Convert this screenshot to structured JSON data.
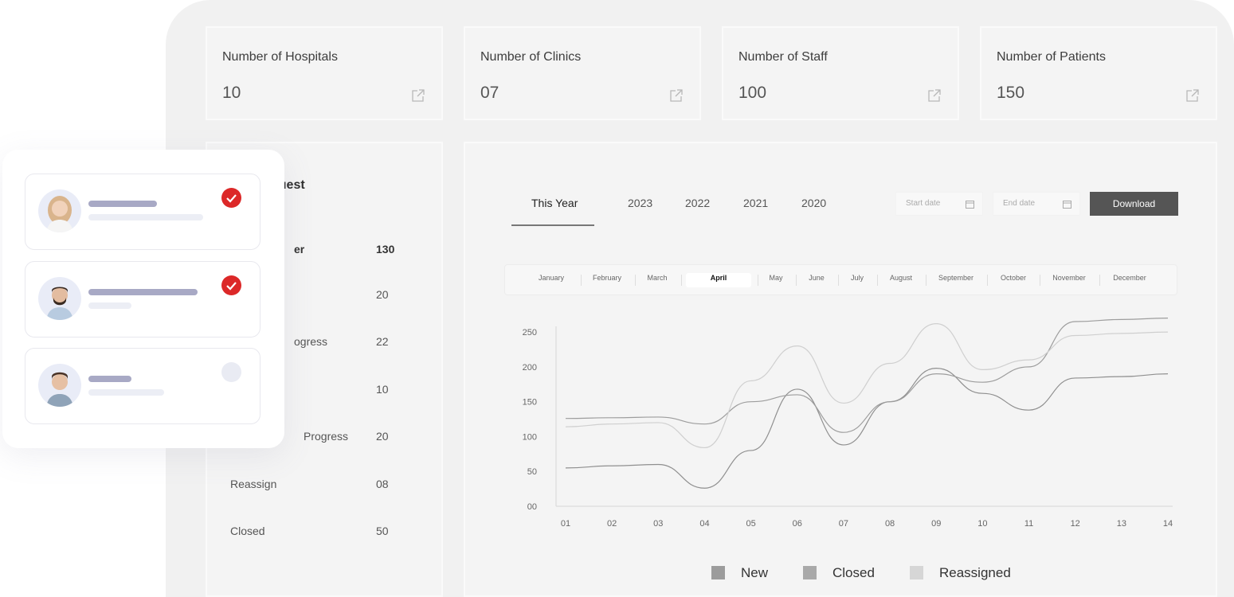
{
  "stats": [
    {
      "title": "Number of Hospitals",
      "value": "10"
    },
    {
      "title": "Number of Clinics",
      "value": "07"
    },
    {
      "title": "Number of Staff",
      "value": "100"
    },
    {
      "title": "Number of Patients",
      "value": "150"
    }
  ],
  "request_panel": {
    "title_partial": "quest",
    "rows": [
      {
        "label": "er",
        "value": "130"
      },
      {
        "label": "",
        "value": "20"
      },
      {
        "label": "ogress",
        "value": "22"
      },
      {
        "label": "",
        "value": "10"
      },
      {
        "label": "Progress",
        "value": "20"
      },
      {
        "label": "Reassign",
        "value": "08"
      },
      {
        "label": "Closed",
        "value": "50"
      }
    ]
  },
  "chart_panel": {
    "tabs": [
      "This Year",
      "2023",
      "2022",
      "2021",
      "2020"
    ],
    "active_tab": "This Year",
    "start_date_placeholder": "Start date",
    "end_date_placeholder": "End date",
    "download_label": "Download",
    "months": [
      "January",
      "February",
      "March",
      "April",
      "May",
      "June",
      "July",
      "August",
      "September",
      "October",
      "November",
      "December"
    ],
    "active_month": "April"
  },
  "chart_data": {
    "type": "line",
    "x": [
      "01",
      "02",
      "03",
      "04",
      "05",
      "06",
      "07",
      "08",
      "09",
      "10",
      "11",
      "12",
      "13",
      "14"
    ],
    "y_ticks": [
      "00",
      "50",
      "100",
      "150",
      "200",
      "250"
    ],
    "ylim": [
      0,
      265
    ],
    "series": [
      {
        "name": "New",
        "color": "#8f8f8f",
        "values": [
          55,
          58,
          60,
          26,
          80,
          168,
          88,
          150,
          198,
          162,
          138,
          184,
          186,
          190
        ]
      },
      {
        "name": "Closed",
        "color": "#9d9d9d",
        "values": [
          126,
          127,
          128,
          118,
          150,
          160,
          106,
          150,
          190,
          178,
          200,
          265,
          268,
          270
        ]
      },
      {
        "name": "Reassigned",
        "color": "#cfcfcf",
        "values": [
          114,
          118,
          120,
          84,
          180,
          230,
          148,
          205,
          262,
          196,
          210,
          245,
          248,
          250
        ]
      }
    ],
    "legend": [
      "New",
      "Closed",
      "Reassigned"
    ],
    "legend_placement": "bottom-center",
    "grid": false
  },
  "users": [
    {
      "status": "approved"
    },
    {
      "status": "approved"
    },
    {
      "status": "pending"
    }
  ]
}
